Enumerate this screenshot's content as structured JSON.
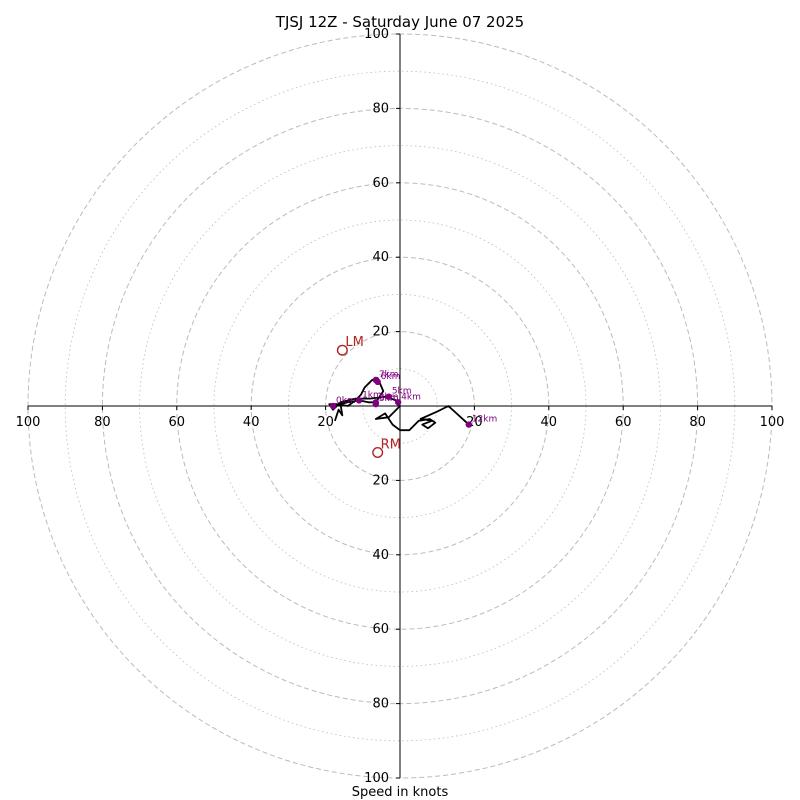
{
  "chart_data": {
    "type": "hodograph",
    "title": "TJSJ 12Z - Saturday June 07 2025",
    "xlabel": "Speed in knots",
    "axis_max": 100,
    "tick_labels": {
      "x": [
        "100",
        "80",
        "60",
        "40",
        "20",
        "20",
        "40",
        "60",
        "80",
        "100"
      ],
      "y": [
        "100",
        "80",
        "60",
        "40",
        "20",
        "20",
        "40",
        "60",
        "80",
        "100"
      ]
    },
    "tick_values": {
      "x": [
        -100,
        -80,
        -60,
        -40,
        -20,
        20,
        40,
        60,
        80,
        100
      ],
      "y": [
        100,
        80,
        60,
        40,
        20,
        -20,
        -40,
        -60,
        -80,
        -100
      ]
    },
    "rings": {
      "dashed": [
        20,
        40,
        60,
        80,
        100
      ],
      "dotted": [
        10,
        30,
        50,
        70,
        90
      ]
    },
    "colors": {
      "trace": "#000000",
      "height_marker": "#800080",
      "storm_motion": "#b22222",
      "grid": "#bbbbbb"
    },
    "hodograph_trace": [
      [
        -17.5,
        -4.0
      ],
      [
        -16.5,
        -1.0
      ],
      [
        -15.5,
        -2.5
      ],
      [
        -16.0,
        0.5
      ],
      [
        -14.0,
        1.0
      ],
      [
        -11.0,
        1.5
      ],
      [
        -8.5,
        1.0
      ],
      [
        -6.5,
        1.0
      ],
      [
        -5.5,
        2.5
      ],
      [
        -4.5,
        4.0
      ],
      [
        -6.0,
        7.5
      ],
      [
        -7.5,
        7.0
      ],
      [
        -9.5,
        5.0
      ],
      [
        -10.5,
        3.0
      ],
      [
        -12.0,
        1.5
      ],
      [
        -14.0,
        0.0
      ],
      [
        -17.0,
        0.5
      ],
      [
        -19.0,
        0.5
      ],
      [
        -18.0,
        -1.0
      ],
      [
        -16.0,
        1.0
      ],
      [
        -12.0,
        2.0
      ],
      [
        -8.0,
        2.0
      ],
      [
        -4.0,
        2.5
      ],
      [
        -1.0,
        1.5
      ],
      [
        0.0,
        0.0
      ],
      [
        -3.0,
        -3.0
      ],
      [
        -6.5,
        -3.5
      ],
      [
        -4.0,
        -2.0
      ],
      [
        -2.0,
        -5.0
      ],
      [
        0.0,
        -6.5
      ],
      [
        2.5,
        -6.5
      ],
      [
        5.0,
        -4.0
      ],
      [
        8.0,
        -3.5
      ],
      [
        9.5,
        -4.5
      ],
      [
        7.5,
        -6.0
      ],
      [
        6.0,
        -5.0
      ],
      [
        8.5,
        -4.0
      ],
      [
        6.0,
        -3.5
      ],
      [
        5.5,
        -3.5
      ],
      [
        10.0,
        -1.5
      ],
      [
        13.0,
        0.0
      ],
      [
        18.5,
        -5.0
      ]
    ],
    "height_markers": [
      {
        "label": "0km",
        "u": -18.0,
        "v": 0.0
      },
      {
        "label": "1km",
        "u": -11.0,
        "v": 1.5
      },
      {
        "label": "2km",
        "u": -6.5,
        "v": 1.0
      },
      {
        "label": "3km",
        "u": -6.5,
        "v": 0.5
      },
      {
        "label": "4km",
        "u": -0.5,
        "v": 1.0
      },
      {
        "label": "5km",
        "u": -3.0,
        "v": 2.5
      },
      {
        "label": "6km",
        "u": -6.0,
        "v": 6.5
      },
      {
        "label": "7km",
        "u": -6.5,
        "v": 7.0
      },
      {
        "label": "12km",
        "u": 18.5,
        "v": -5.0
      }
    ],
    "storm_motion": [
      {
        "label": "LM",
        "u": -15.5,
        "v": 15.0
      },
      {
        "label": "RM",
        "u": -6.0,
        "v": -12.5
      }
    ]
  }
}
